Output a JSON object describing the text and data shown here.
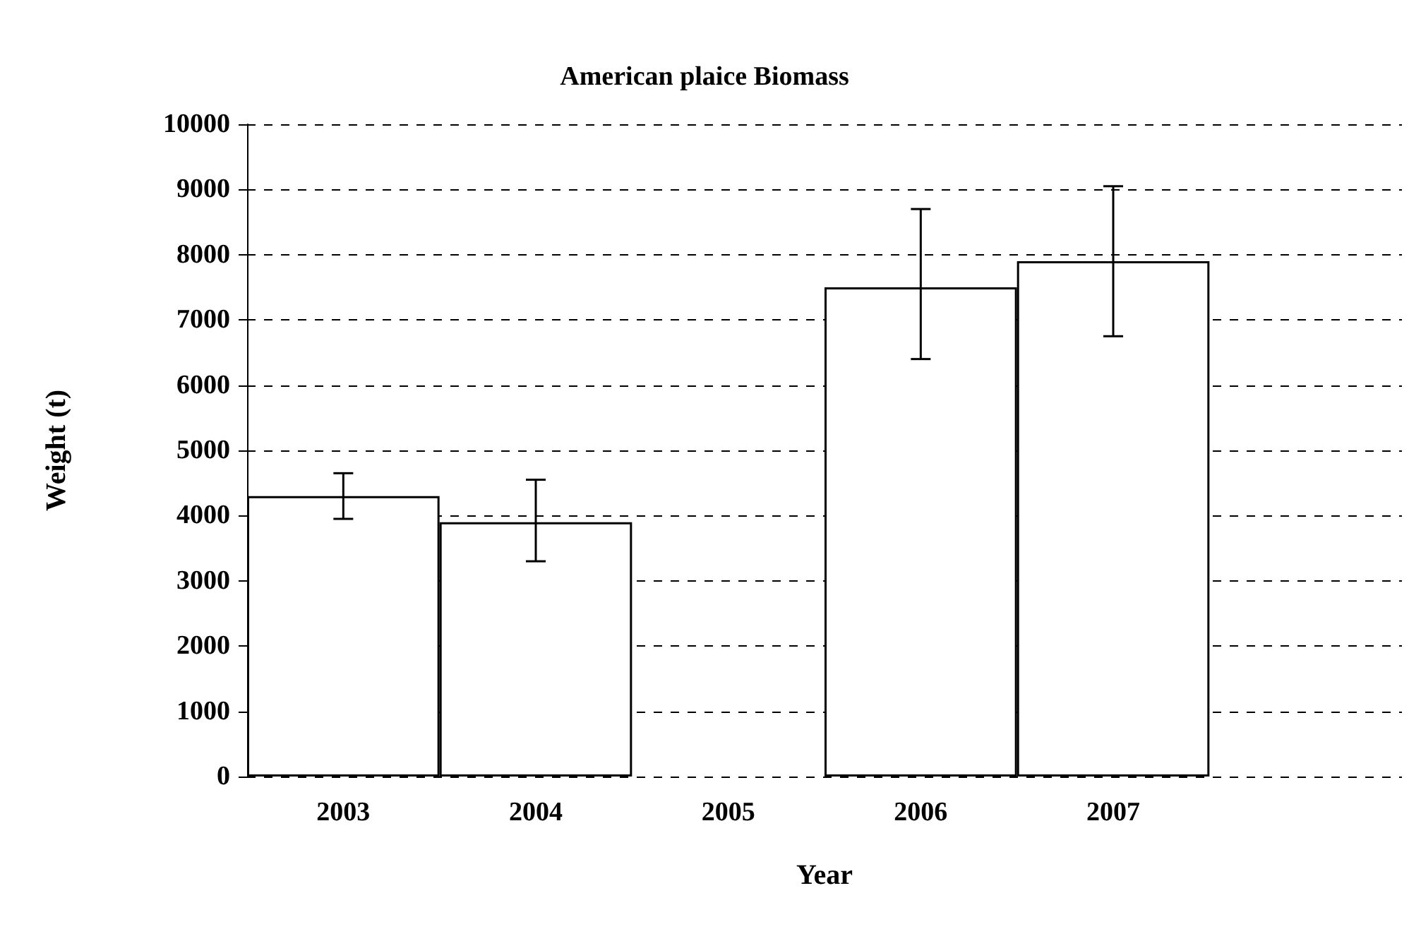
{
  "chart_data": {
    "type": "bar",
    "title": "American plaice Biomass",
    "xlabel": "Year",
    "ylabel": "Weight (t)",
    "categories": [
      "2003",
      "2004",
      "2005",
      "2006",
      "2007",
      null
    ],
    "values": [
      4300,
      3900,
      null,
      7500,
      7900,
      null
    ],
    "errors": [
      [
        3950,
        4650
      ],
      [
        3300,
        4550
      ],
      null,
      [
        6400,
        8700
      ],
      [
        6750,
        9050
      ],
      null
    ],
    "color": "#ffffff",
    "ylim": [
      0,
      10000
    ],
    "yticks": [
      0,
      1000,
      2000,
      3000,
      4000,
      5000,
      6000,
      7000,
      8000,
      9000,
      10000
    ],
    "grid": "y"
  }
}
